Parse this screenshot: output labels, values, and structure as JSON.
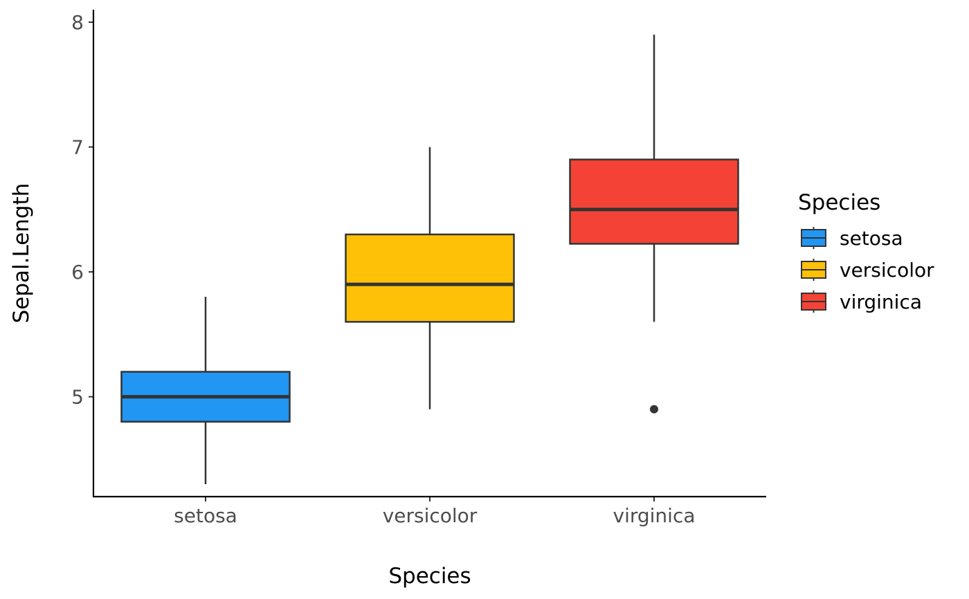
{
  "chart_data": {
    "type": "boxplot",
    "xlabel": "Species",
    "ylabel": "Sepal.Length",
    "ylim": [
      4.2,
      8.1
    ],
    "yticks": [
      5,
      6,
      7,
      8
    ],
    "grid": false,
    "legend": {
      "title": "Species",
      "placement": "right"
    },
    "categories": [
      "setosa",
      "versicolor",
      "virginica"
    ],
    "series": [
      {
        "name": "setosa",
        "color": "#2196F3",
        "min": 4.3,
        "q1": 4.8,
        "median": 5.0,
        "q3": 5.2,
        "max": 5.8,
        "outliers": []
      },
      {
        "name": "versicolor",
        "color": "#FFC107",
        "min": 4.9,
        "q1": 5.6,
        "median": 5.9,
        "q3": 6.3,
        "max": 7.0,
        "outliers": []
      },
      {
        "name": "virginica",
        "color": "#F44336",
        "min": 5.6,
        "q1": 6.225,
        "median": 6.5,
        "q3": 6.9,
        "max": 7.9,
        "outliers": [
          4.9
        ]
      }
    ]
  }
}
